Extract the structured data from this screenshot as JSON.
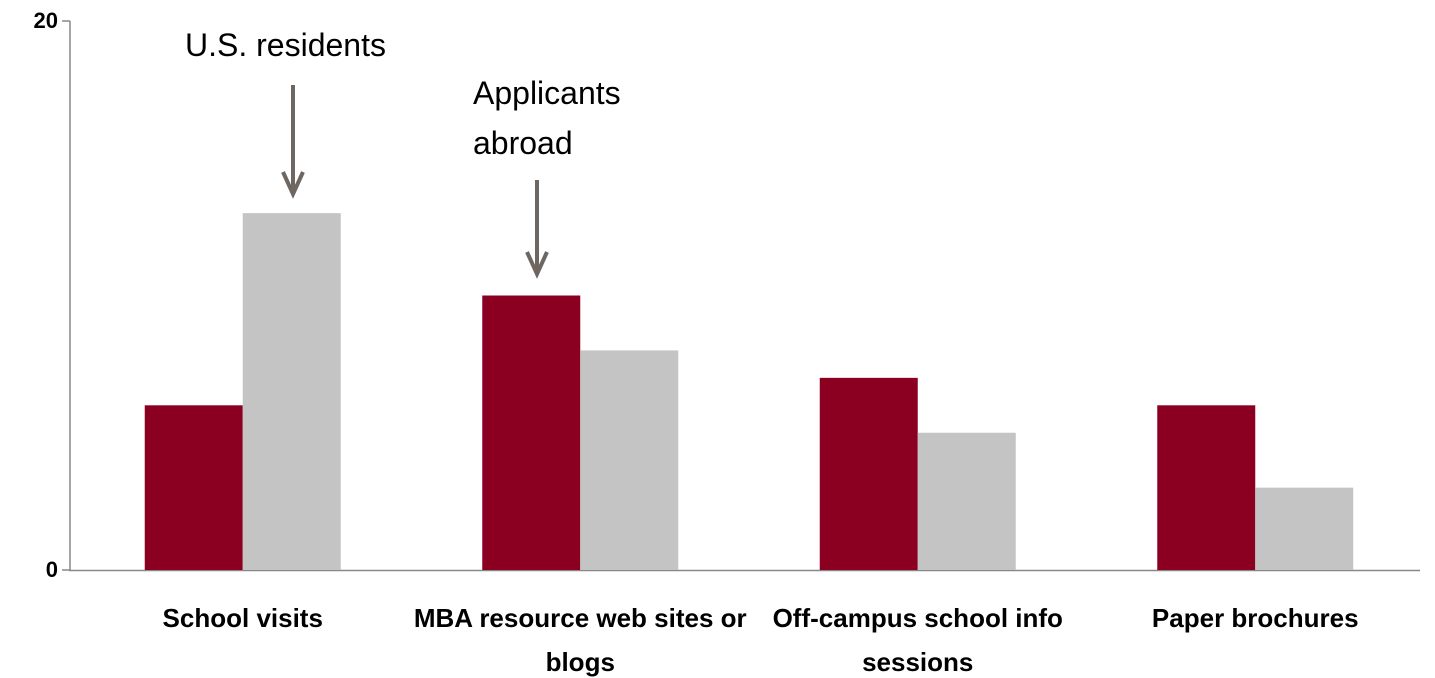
{
  "chart_data": {
    "type": "bar",
    "categories": [
      "School visits",
      "MBA resource web sites or blogs",
      "Off-campus school info sessions",
      "Paper brochures"
    ],
    "series": [
      {
        "name": "Applicants abroad",
        "color": "#8b0021",
        "values": [
          6,
          10,
          7,
          6
        ]
      },
      {
        "name": "U.S. residents",
        "color": "#c4c4c4",
        "values": [
          13,
          8,
          5,
          3
        ]
      }
    ],
    "ylim": [
      0,
      20
    ],
    "yticks": [
      0,
      20
    ],
    "grid": false
  }
}
